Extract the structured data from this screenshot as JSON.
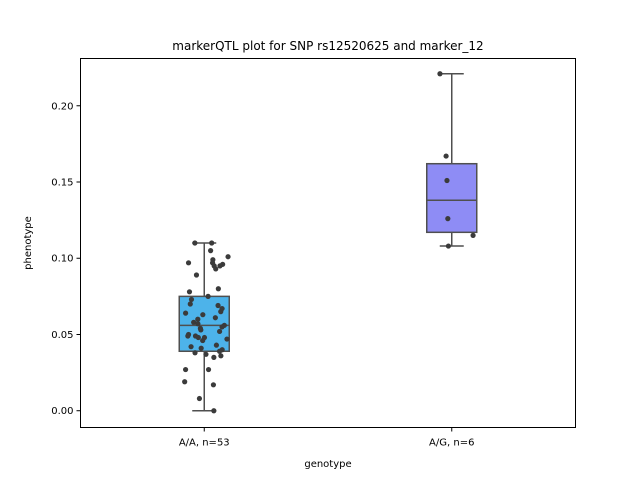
{
  "chart_data": {
    "type": "box",
    "title": "markerQTL plot for SNP rs12520625 and marker_12",
    "xlabel": "genotype",
    "ylabel": "phenotype",
    "categories": [
      "A/A, n=53",
      "A/G, n=6"
    ],
    "ylim": [
      -0.011,
      0.231
    ],
    "yticks": [
      0.0,
      0.05,
      0.1,
      0.15,
      0.2
    ],
    "ytick_labels": [
      "0.00",
      "0.05",
      "0.10",
      "0.15",
      "0.20"
    ],
    "grid": false,
    "boxes": [
      {
        "category": "A/A, n=53",
        "color": "#4db3ea",
        "whisker_low": 0.0,
        "q1": 0.039,
        "median": 0.056,
        "q3": 0.075,
        "whisker_high": 0.11
      },
      {
        "category": "A/G, n=6",
        "color": "#8e8cf5",
        "whisker_low": 0.108,
        "q1": 0.117,
        "median": 0.138,
        "q3": 0.162,
        "whisker_high": 0.221
      }
    ],
    "points": [
      {
        "category": "A/A, n=53",
        "values": [
          0.11,
          0.11,
          0.105,
          0.101,
          0.099,
          0.097,
          0.097,
          0.096,
          0.095,
          0.095,
          0.093,
          0.089,
          0.08,
          0.078,
          0.075,
          0.073,
          0.07,
          0.069,
          0.067,
          0.065,
          0.064,
          0.063,
          0.061,
          0.06,
          0.058,
          0.057,
          0.056,
          0.055,
          0.054,
          0.053,
          0.052,
          0.05,
          0.049,
          0.049,
          0.048,
          0.048,
          0.047,
          0.046,
          0.043,
          0.042,
          0.041,
          0.04,
          0.039,
          0.038,
          0.037,
          0.036,
          0.035,
          0.027,
          0.027,
          0.019,
          0.017,
          0.008,
          0.0
        ]
      },
      {
        "category": "A/G, n=6",
        "values": [
          0.221,
          0.167,
          0.151,
          0.126,
          0.115,
          0.108
        ]
      }
    ],
    "point_color": "#3b3b3b"
  }
}
